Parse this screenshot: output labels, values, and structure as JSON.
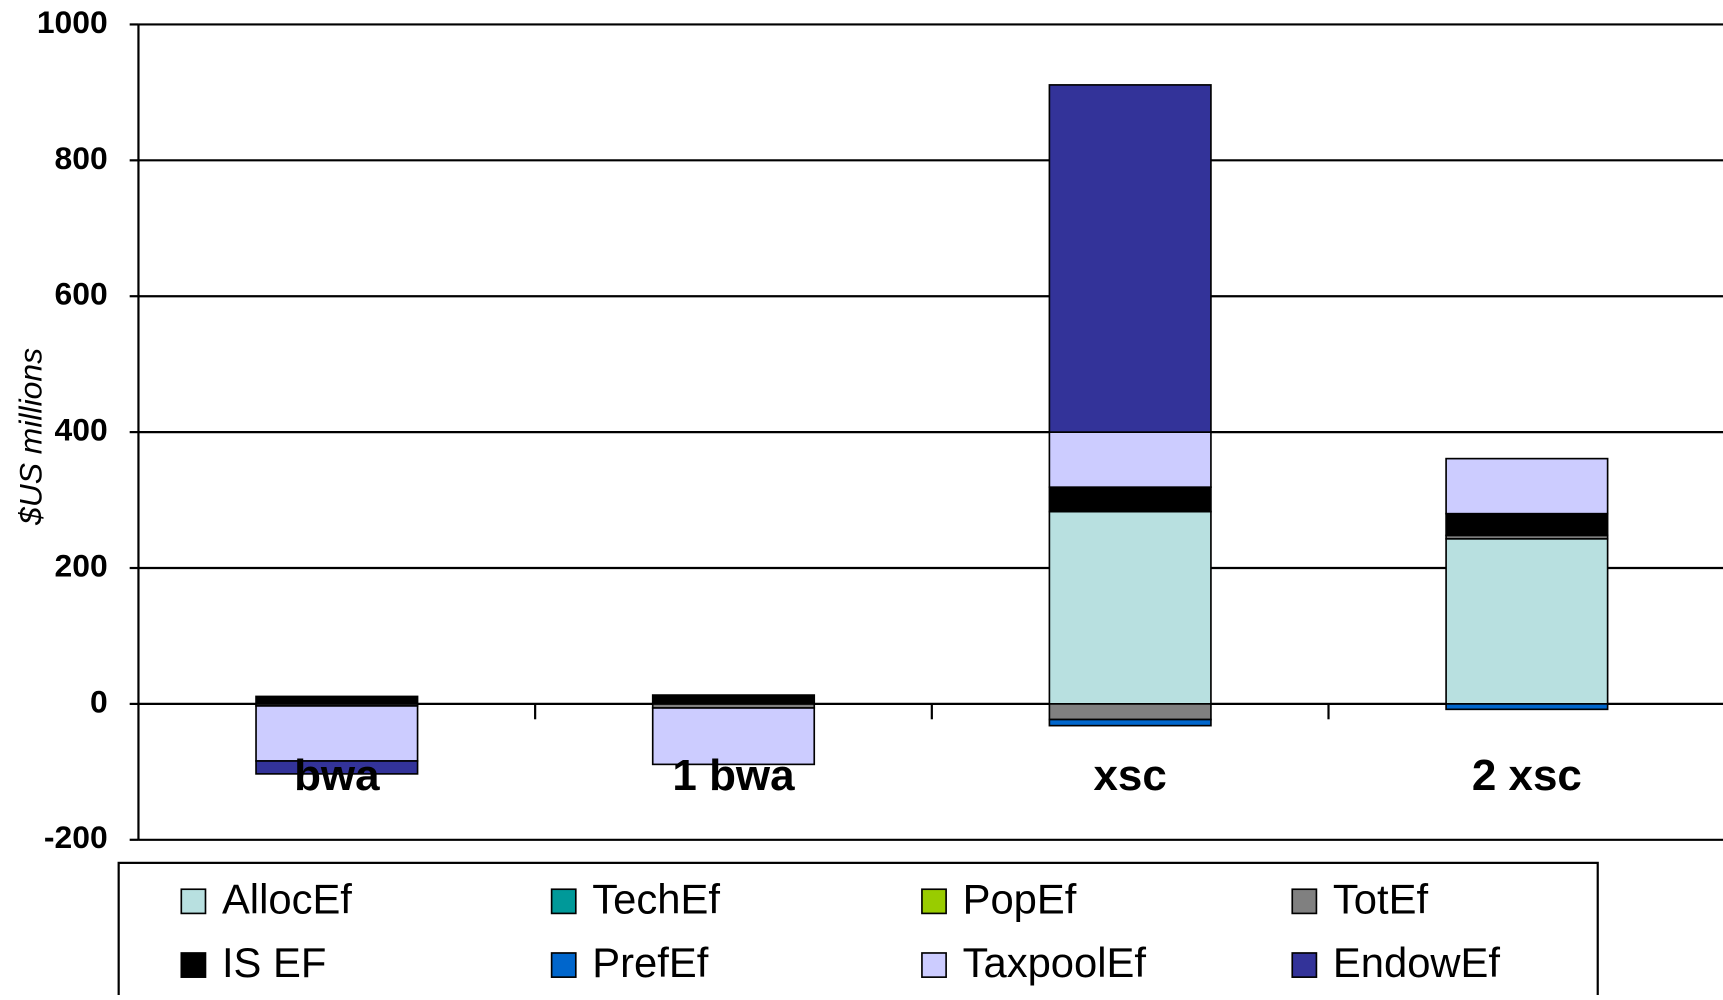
{
  "chart_data": {
    "type": "stacked_bar",
    "y_label": "$US millions",
    "categories": [
      "bwa",
      "1 bwa",
      "xsc",
      "2 xsc"
    ],
    "series": [
      {
        "name": "AllocEf",
        "color": "#b8e0e0",
        "values": [
          0,
          0,
          283,
          243
        ]
      },
      {
        "name": "TechEf",
        "color": "#009999",
        "values": [
          0,
          0,
          0,
          0
        ]
      },
      {
        "name": "PopEf",
        "color": "#99cc00",
        "values": [
          0,
          0,
          0,
          0
        ]
      },
      {
        "name": "TotEf",
        "color": "#808080",
        "values": [
          -3,
          -6,
          -23,
          5
        ]
      },
      {
        "name": "IS EF",
        "color": "#000000",
        "values": [
          11,
          13,
          36,
          32
        ]
      },
      {
        "name": "PrefEf",
        "color": "#0066cc",
        "values": [
          0,
          0,
          -9,
          -8
        ]
      },
      {
        "name": "TaxpoolEf",
        "color": "#ccccff",
        "values": [
          -81,
          -83,
          81,
          81
        ]
      },
      {
        "name": "EndowEf",
        "color": "#333399",
        "values": [
          -19,
          0,
          511,
          0
        ]
      }
    ],
    "ylim": [
      -200,
      1000
    ],
    "yticks": [
      -200,
      0,
      200,
      400,
      600,
      800,
      1000
    ],
    "grid": true
  }
}
